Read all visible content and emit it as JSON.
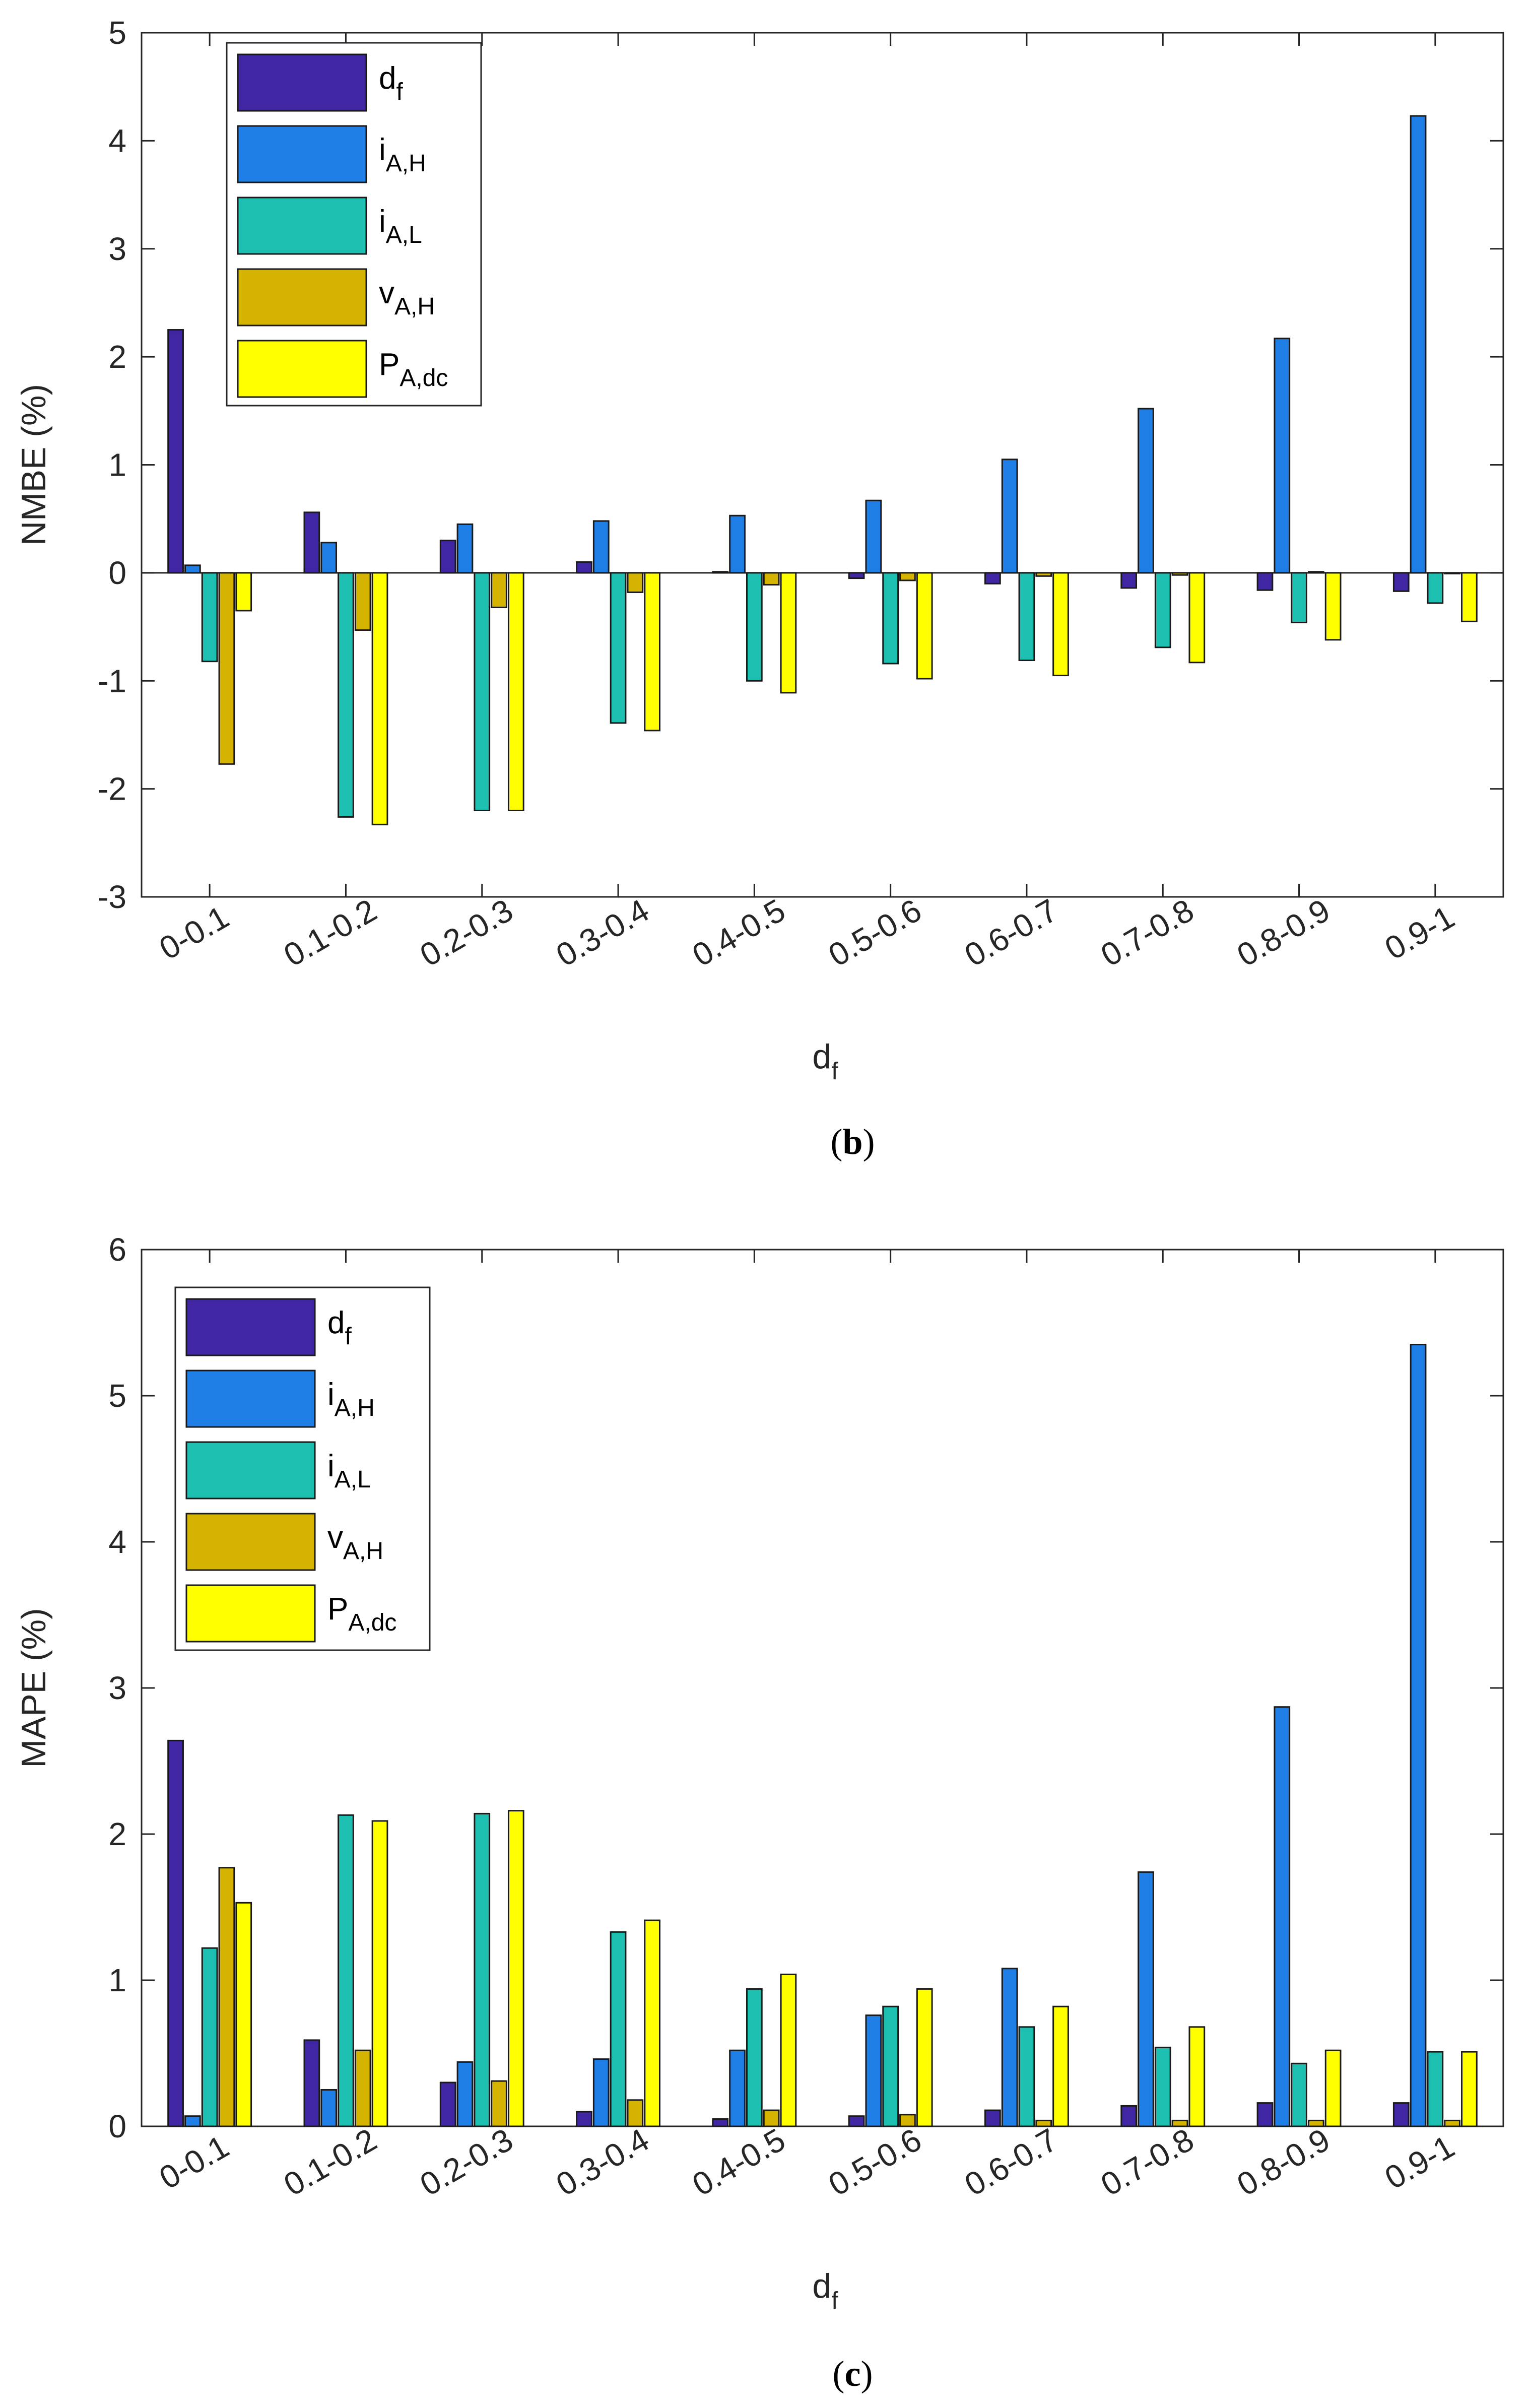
{
  "chart_data": [
    {
      "type": "bar",
      "panel_label": "b",
      "title": "",
      "xlabel": "d",
      "xlabel_sub": "f",
      "ylabel": "NMBE (%)",
      "ylim": [
        -3,
        5
      ],
      "yticks": [
        -3,
        -2,
        -1,
        0,
        1,
        2,
        3,
        4,
        5
      ],
      "grid": false,
      "legend_position": "top-left",
      "categories": [
        "0-0.1",
        "0.1-0.2",
        "0.2-0.3",
        "0.3-0.4",
        "0.4-0.5",
        "0.5-0.6",
        "0.6-0.7",
        "0.7-0.8",
        "0.8-0.9",
        "0.9-1"
      ],
      "series": [
        {
          "name": "d",
          "sub": "f",
          "color": "#4126a3",
          "values": [
            2.25,
            0.56,
            0.3,
            0.1,
            0.01,
            -0.05,
            -0.1,
            -0.14,
            -0.16,
            -0.17
          ]
        },
        {
          "name": "i",
          "sub": "A,H",
          "color": "#1f7fe6",
          "values": [
            0.07,
            0.28,
            0.45,
            0.48,
            0.53,
            0.67,
            1.05,
            1.52,
            2.17,
            4.23
          ]
        },
        {
          "name": "i",
          "sub": "A,L",
          "color": "#1dbfb0",
          "values": [
            -0.82,
            -2.26,
            -2.2,
            -1.39,
            -1.0,
            -0.84,
            -0.81,
            -0.69,
            -0.46,
            -0.28
          ]
        },
        {
          "name": "v",
          "sub": "A,H",
          "color": "#d4b400",
          "values": [
            -1.77,
            -0.53,
            -0.32,
            -0.18,
            -0.11,
            -0.07,
            -0.03,
            -0.02,
            0.01,
            0.0
          ]
        },
        {
          "name": "P",
          "sub": "A,dc",
          "color": "#ffff00",
          "values": [
            -0.35,
            -2.33,
            -2.2,
            -1.46,
            -1.11,
            -0.98,
            -0.95,
            -0.83,
            -0.62,
            -0.45
          ]
        }
      ]
    },
    {
      "type": "bar",
      "panel_label": "c",
      "title": "",
      "xlabel": "d",
      "xlabel_sub": "f",
      "ylabel": "MAPE (%)",
      "ylim": [
        0,
        6
      ],
      "yticks": [
        0,
        1,
        2,
        3,
        4,
        5,
        6
      ],
      "grid": false,
      "legend_position": "top-left",
      "categories": [
        "0-0.1",
        "0.1-0.2",
        "0.2-0.3",
        "0.3-0.4",
        "0.4-0.5",
        "0.5-0.6",
        "0.6-0.7",
        "0.7-0.8",
        "0.8-0.9",
        "0.9-1"
      ],
      "series": [
        {
          "name": "d",
          "sub": "f",
          "color": "#4126a3",
          "values": [
            2.64,
            0.59,
            0.3,
            0.1,
            0.05,
            0.07,
            0.11,
            0.14,
            0.16,
            0.16
          ]
        },
        {
          "name": "i",
          "sub": "A,H",
          "color": "#1f7fe6",
          "values": [
            0.07,
            0.25,
            0.44,
            0.46,
            0.52,
            0.76,
            1.08,
            1.74,
            2.87,
            5.35
          ]
        },
        {
          "name": "i",
          "sub": "A,L",
          "color": "#1dbfb0",
          "values": [
            1.22,
            2.13,
            2.14,
            1.33,
            0.94,
            0.82,
            0.68,
            0.54,
            0.43,
            0.51
          ]
        },
        {
          "name": "v",
          "sub": "A,H",
          "color": "#d4b400",
          "values": [
            1.77,
            0.52,
            0.31,
            0.18,
            0.11,
            0.08,
            0.04,
            0.04,
            0.04,
            0.04
          ]
        },
        {
          "name": "P",
          "sub": "A,dc",
          "color": "#ffff00",
          "values": [
            1.53,
            2.09,
            2.16,
            1.41,
            1.04,
            0.94,
            0.82,
            0.68,
            0.52,
            0.51
          ]
        }
      ]
    }
  ]
}
